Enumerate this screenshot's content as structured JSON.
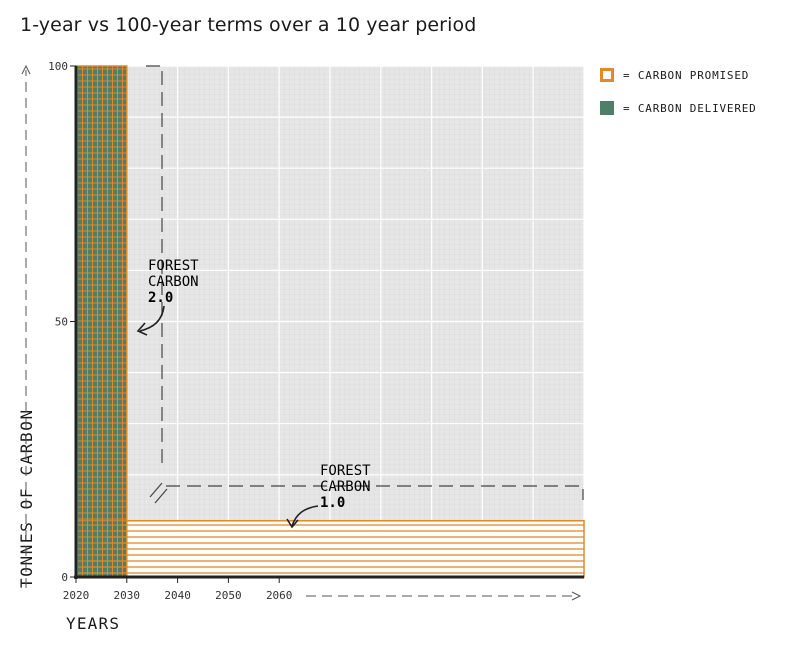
{
  "chart_data": {
    "type": "bar",
    "title": "1-year vs 100-year terms over a 10 year period",
    "xlabel": "YEARS",
    "ylabel": "TONNES OF CARBON",
    "x_ticks": [
      "2020",
      "2030",
      "2040",
      "2050",
      "2060"
    ],
    "y_ticks": [
      "0",
      "50",
      "100"
    ],
    "xlim": [
      2020,
      2120
    ],
    "ylim": [
      0,
      100
    ],
    "grid": true,
    "legend_position": "top-right",
    "legend": [
      {
        "label": "= CARBON PROMISED",
        "color": "#e08a2c"
      },
      {
        "label": "= CARBON DELIVERED",
        "color": "#4f7f68"
      }
    ],
    "series": [
      {
        "name": "FOREST CARBON 2.0",
        "x_start": 2020,
        "x_end": 2030,
        "promised": 100,
        "delivered": 100,
        "color": "#4f7f68"
      },
      {
        "name": "FOREST CARBON 1.0",
        "x_start": 2020,
        "x_end": 2120,
        "promised": 11,
        "delivered": 0,
        "color": "#e08a2c"
      }
    ],
    "annotations": [
      {
        "lines": [
          "FOREST",
          "CARBON"
        ],
        "bold": "2.0"
      },
      {
        "lines": [
          "FOREST",
          "CARBON"
        ],
        "bold": "1.0"
      }
    ]
  }
}
